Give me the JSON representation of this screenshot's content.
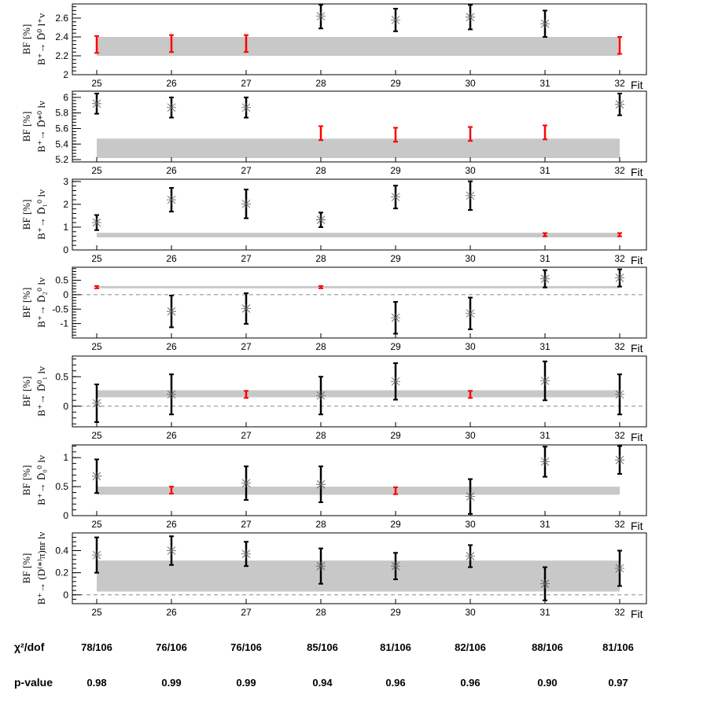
{
  "colors": {
    "band": "#c8c8c8",
    "highlight": "#ff0000",
    "normal": "#000000",
    "axis": "#000000",
    "zero_line": "#888888"
  },
  "x_label": "Fit",
  "categories": [
    "25",
    "26",
    "27",
    "28",
    "29",
    "30",
    "31",
    "32"
  ],
  "chart_data": [
    {
      "type": "scatter",
      "ylabel_main": "BF [%]",
      "ylabel_sub": "B⁺→ D̄⁰ l⁺ν",
      "ylim": [
        2.0,
        2.75
      ],
      "yticks": [
        2,
        2.2,
        2.4,
        2.6
      ],
      "ytick_labels": [
        "2",
        "2.2",
        "2.4",
        "2.6"
      ],
      "band": [
        2.2,
        2.4
      ],
      "zero_line": false,
      "points": [
        {
          "fit": 25,
          "value": 2.32,
          "err": 0.09,
          "highlight": true
        },
        {
          "fit": 26,
          "value": 2.33,
          "err": 0.09,
          "highlight": true
        },
        {
          "fit": 27,
          "value": 2.33,
          "err": 0.09,
          "highlight": true
        },
        {
          "fit": 28,
          "value": 2.62,
          "err": 0.13,
          "highlight": false
        },
        {
          "fit": 29,
          "value": 2.58,
          "err": 0.12,
          "highlight": false
        },
        {
          "fit": 30,
          "value": 2.61,
          "err": 0.13,
          "highlight": false
        },
        {
          "fit": 31,
          "value": 2.54,
          "err": 0.14,
          "highlight": false
        },
        {
          "fit": 32,
          "value": 2.31,
          "err": 0.09,
          "highlight": true
        }
      ]
    },
    {
      "type": "scatter",
      "ylabel_main": "BF [%]",
      "ylabel_sub": "B⁺→ D̄*⁰ lν",
      "ylim": [
        5.17,
        6.08
      ],
      "yticks": [
        5.2,
        5.4,
        5.6,
        5.8,
        6
      ],
      "ytick_labels": [
        "5.2",
        "5.4",
        "5.6",
        "5.8",
        "6"
      ],
      "band": [
        5.22,
        5.47
      ],
      "zero_line": false,
      "points": [
        {
          "fit": 25,
          "value": 5.92,
          "err": 0.13,
          "highlight": false
        },
        {
          "fit": 26,
          "value": 5.87,
          "err": 0.13,
          "highlight": false
        },
        {
          "fit": 27,
          "value": 5.87,
          "err": 0.13,
          "highlight": false
        },
        {
          "fit": 28,
          "value": 5.54,
          "err": 0.09,
          "highlight": true
        },
        {
          "fit": 29,
          "value": 5.52,
          "err": 0.09,
          "highlight": true
        },
        {
          "fit": 30,
          "value": 5.53,
          "err": 0.09,
          "highlight": true
        },
        {
          "fit": 31,
          "value": 5.55,
          "err": 0.09,
          "highlight": true
        },
        {
          "fit": 32,
          "value": 5.91,
          "err": 0.14,
          "highlight": false
        }
      ]
    },
    {
      "type": "scatter",
      "ylabel_main": "BF [%]",
      "ylabel_sub": "B⁺→ D̄₁⁰ lν",
      "ylim": [
        0,
        3.1
      ],
      "yticks": [
        0,
        1,
        2,
        3
      ],
      "ytick_labels": [
        "0",
        "1",
        "2",
        "3"
      ],
      "band": [
        0.55,
        0.75
      ],
      "zero_line": false,
      "points": [
        {
          "fit": 25,
          "value": 1.2,
          "err": 0.33,
          "highlight": false
        },
        {
          "fit": 26,
          "value": 2.2,
          "err": 0.52,
          "highlight": false
        },
        {
          "fit": 27,
          "value": 2.02,
          "err": 0.63,
          "highlight": false
        },
        {
          "fit": 28,
          "value": 1.32,
          "err": 0.32,
          "highlight": false
        },
        {
          "fit": 29,
          "value": 2.32,
          "err": 0.5,
          "highlight": false
        },
        {
          "fit": 30,
          "value": 2.38,
          "err": 0.63,
          "highlight": false
        },
        {
          "fit": 31,
          "value": 0.67,
          "err": 0.07,
          "highlight": true
        },
        {
          "fit": 32,
          "value": 0.67,
          "err": 0.07,
          "highlight": true
        }
      ]
    },
    {
      "type": "scatter",
      "ylabel_main": "BF [%]",
      "ylabel_sub": "B⁺→ D̄₂⁰ lν",
      "ylim": [
        -1.5,
        0.95
      ],
      "yticks": [
        -1,
        -0.5,
        0,
        0.5
      ],
      "ytick_labels": [
        "-1",
        "-0.5",
        "0",
        "0.5"
      ],
      "band": [
        0.22,
        0.3
      ],
      "zero_line": true,
      "points": [
        {
          "fit": 25,
          "value": 0.26,
          "err": 0.04,
          "highlight": true
        },
        {
          "fit": 26,
          "value": -0.58,
          "err": 0.55,
          "highlight": false
        },
        {
          "fit": 27,
          "value": -0.48,
          "err": 0.53,
          "highlight": false
        },
        {
          "fit": 28,
          "value": 0.26,
          "err": 0.04,
          "highlight": true
        },
        {
          "fit": 29,
          "value": -0.8,
          "err": 0.55,
          "highlight": false
        },
        {
          "fit": 30,
          "value": -0.65,
          "err": 0.55,
          "highlight": false
        },
        {
          "fit": 31,
          "value": 0.55,
          "err": 0.3,
          "highlight": false
        },
        {
          "fit": 32,
          "value": 0.58,
          "err": 0.3,
          "highlight": false
        }
      ]
    },
    {
      "type": "scatter",
      "ylabel_main": "BF [%]",
      "ylabel_sub": "B⁺→ D̄⁰₁ lν",
      "ylim": [
        -0.35,
        0.85
      ],
      "yticks": [
        0,
        0.5
      ],
      "ytick_labels": [
        "0",
        "0.5"
      ],
      "band": [
        0.15,
        0.27
      ],
      "zero_line": true,
      "points": [
        {
          "fit": 25,
          "value": 0.05,
          "err": 0.32,
          "highlight": false
        },
        {
          "fit": 26,
          "value": 0.2,
          "err": 0.34,
          "highlight": false
        },
        {
          "fit": 27,
          "value": 0.2,
          "err": 0.06,
          "highlight": true
        },
        {
          "fit": 28,
          "value": 0.18,
          "err": 0.32,
          "highlight": false
        },
        {
          "fit": 29,
          "value": 0.42,
          "err": 0.31,
          "highlight": false
        },
        {
          "fit": 30,
          "value": 0.2,
          "err": 0.06,
          "highlight": true
        },
        {
          "fit": 31,
          "value": 0.43,
          "err": 0.33,
          "highlight": false
        },
        {
          "fit": 32,
          "value": 0.2,
          "err": 0.34,
          "highlight": false
        }
      ]
    },
    {
      "type": "scatter",
      "ylabel_main": "BF [%]",
      "ylabel_sub": "B⁺→ D̄₀⁰ lν",
      "ylim": [
        0,
        1.22
      ],
      "yticks": [
        0,
        0.5,
        1
      ],
      "ytick_labels": [
        "0",
        "0.5",
        "1"
      ],
      "band": [
        0.36,
        0.5
      ],
      "zero_line": false,
      "points": [
        {
          "fit": 25,
          "value": 0.68,
          "err": 0.29,
          "highlight": false
        },
        {
          "fit": 26,
          "value": 0.44,
          "err": 0.06,
          "highlight": true
        },
        {
          "fit": 27,
          "value": 0.56,
          "err": 0.29,
          "highlight": false
        },
        {
          "fit": 28,
          "value": 0.54,
          "err": 0.31,
          "highlight": false
        },
        {
          "fit": 29,
          "value": 0.43,
          "err": 0.06,
          "highlight": true
        },
        {
          "fit": 30,
          "value": 0.33,
          "err": 0.3,
          "highlight": false
        },
        {
          "fit": 31,
          "value": 0.93,
          "err": 0.26,
          "highlight": false
        },
        {
          "fit": 32,
          "value": 0.96,
          "err": 0.24,
          "highlight": false
        }
      ]
    },
    {
      "type": "scatter",
      "ylabel_main": "BF [%]",
      "ylabel_sub": "B⁺→ (D⁽*⁾π)nr lν",
      "ylim": [
        -0.08,
        0.56
      ],
      "yticks": [
        0,
        0.2,
        0.4
      ],
      "ytick_labels": [
        "0",
        "0.2",
        "0.4"
      ],
      "band": [
        0.03,
        0.31
      ],
      "zero_line": true,
      "points": [
        {
          "fit": 25,
          "value": 0.36,
          "err": 0.16,
          "highlight": false
        },
        {
          "fit": 26,
          "value": 0.4,
          "err": 0.13,
          "highlight": false
        },
        {
          "fit": 27,
          "value": 0.37,
          "err": 0.11,
          "highlight": false
        },
        {
          "fit": 28,
          "value": 0.26,
          "err": 0.16,
          "highlight": false
        },
        {
          "fit": 29,
          "value": 0.26,
          "err": 0.12,
          "highlight": false
        },
        {
          "fit": 30,
          "value": 0.35,
          "err": 0.1,
          "highlight": false
        },
        {
          "fit": 31,
          "value": 0.1,
          "err": 0.15,
          "highlight": false
        },
        {
          "fit": 32,
          "value": 0.24,
          "err": 0.16,
          "highlight": false
        }
      ]
    }
  ],
  "footer": {
    "chi2_label": "χ²/dof",
    "chi2_values": [
      "78/106",
      "76/106",
      "76/106",
      "85/106",
      "81/106",
      "82/106",
      "88/106",
      "81/106"
    ],
    "pvalue_label": "p-value",
    "pvalue_values": [
      "0.98",
      "0.99",
      "0.99",
      "0.94",
      "0.96",
      "0.96",
      "0.90",
      "0.97"
    ]
  }
}
